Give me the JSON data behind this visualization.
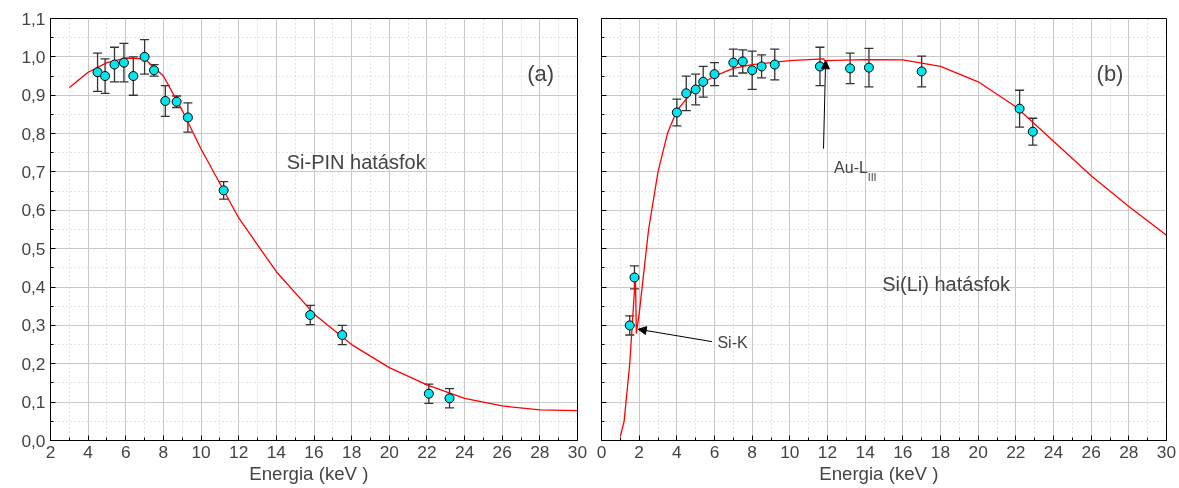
{
  "chart_data": [
    {
      "type": "scatter",
      "xlabel": "Energia   (keV )",
      "xlim": [
        2,
        30
      ],
      "ylim": [
        0,
        1.1
      ],
      "xticks": [
        2,
        4,
        6,
        8,
        10,
        12,
        14,
        16,
        18,
        20,
        22,
        24,
        26,
        28,
        30
      ],
      "yticks": [
        {
          "value": 0,
          "label": "0,0"
        },
        {
          "value": 0.1,
          "label": "0,1"
        },
        {
          "value": 0.2,
          "label": "0,2"
        },
        {
          "value": 0.3,
          "label": "0,3"
        },
        {
          "value": 0.4,
          "label": "0,4"
        },
        {
          "value": 0.5,
          "label": "0,5"
        },
        {
          "value": 0.6,
          "label": "0,6"
        },
        {
          "value": 0.7,
          "label": "0,7"
        },
        {
          "value": 0.8,
          "label": "0,8"
        },
        {
          "value": 0.9,
          "label": "0,9"
        },
        {
          "value": 1.0,
          "label": "1,0"
        },
        {
          "value": 1.1,
          "label": "1,1"
        }
      ],
      "grid": true,
      "marker": "circle",
      "series": [
        {
          "color": "#00e5ee",
          "x": [
            4.5,
            4.9,
            5.4,
            5.9,
            6.4,
            7.0,
            7.5,
            8.1,
            8.7,
            9.3,
            11.2,
            15.8,
            17.5,
            22.1,
            23.2
          ],
          "values": [
            0.96,
            0.95,
            0.98,
            0.985,
            0.95,
            1.0,
            0.965,
            0.885,
            0.883,
            0.842,
            0.652,
            0.327,
            0.275,
            0.122,
            0.11
          ],
          "errors": [
            0.05,
            0.045,
            0.045,
            0.05,
            0.05,
            0.045,
            0.015,
            0.04,
            0.015,
            0.038,
            0.023,
            0.025,
            0.025,
            0.025,
            0.025
          ]
        },
        {
          "type": "line",
          "marker": "none",
          "color": "#ff0000",
          "x": [
            3,
            4,
            5,
            6,
            7,
            8,
            9,
            10,
            11,
            12,
            14,
            16,
            18,
            20,
            22,
            24,
            26,
            28,
            30
          ],
          "values": [
            0.92,
            0.96,
            0.985,
            0.997,
            0.995,
            0.95,
            0.86,
            0.76,
            0.67,
            0.58,
            0.44,
            0.33,
            0.25,
            0.19,
            0.145,
            0.11,
            0.09,
            0.08,
            0.078
          ]
        }
      ],
      "annotations": [
        "(a)",
        "Si-PIN hatásfok"
      ]
    },
    {
      "type": "scatter",
      "xlabel": "Energia   (keV )",
      "xlim": [
        0,
        30
      ],
      "ylim": [
        0,
        1.1
      ],
      "xticks": [
        0,
        2,
        4,
        6,
        8,
        10,
        12,
        14,
        16,
        18,
        20,
        22,
        24,
        26,
        28,
        30
      ],
      "yticks": [
        {
          "value": 0,
          "label": null
        },
        {
          "value": 0.1,
          "label": null
        },
        {
          "value": 0.2,
          "label": null
        },
        {
          "value": 0.3,
          "label": null
        },
        {
          "value": 0.4,
          "label": null
        },
        {
          "value": 0.5,
          "label": null
        },
        {
          "value": 0.6,
          "label": null
        },
        {
          "value": 0.7,
          "label": null
        },
        {
          "value": 0.8,
          "label": null
        },
        {
          "value": 0.9,
          "label": null
        },
        {
          "value": 1.0,
          "label": null
        },
        {
          "value": 1.1,
          "label": null
        }
      ],
      "tick_labels": "x",
      "grid": true,
      "marker": "circle",
      "series": [
        {
          "color": "#00e5ee",
          "x": [
            1.5,
            1.75,
            4.0,
            4.5,
            5.0,
            5.4,
            6.0,
            7.0,
            7.5,
            8.0,
            8.5,
            9.2,
            11.6,
            13.2,
            14.2,
            17.0,
            22.2,
            22.9
          ],
          "values": [
            0.3,
            0.425,
            0.855,
            0.905,
            0.915,
            0.935,
            0.955,
            0.985,
            0.988,
            0.965,
            0.975,
            0.98,
            0.975,
            0.97,
            0.972,
            0.962,
            0.865,
            0.805
          ],
          "errors": [
            0.025,
            0.03,
            0.035,
            0.045,
            0.04,
            0.04,
            0.03,
            0.035,
            0.03,
            0.05,
            0.03,
            0.04,
            0.05,
            0.04,
            0.05,
            0.04,
            0.048,
            0.035
          ]
        },
        {
          "type": "line",
          "marker": "none",
          "color": "#ff0000",
          "x": [
            1.0,
            1.2,
            1.5,
            1.8,
            1.85,
            2.0,
            2.5,
            3.0,
            3.5,
            4.0,
            5.0,
            6.0,
            7.0,
            8.0,
            10.0,
            11.8,
            11.85,
            14.0,
            16.0,
            18.0,
            20.0,
            22.0,
            24.0,
            26.0,
            28.0,
            30.0
          ],
          "values": [
            0.01,
            0.05,
            0.2,
            0.43,
            0.28,
            0.33,
            0.55,
            0.7,
            0.8,
            0.86,
            0.92,
            0.95,
            0.97,
            0.98,
            0.99,
            0.995,
            0.99,
            0.993,
            0.992,
            0.975,
            0.935,
            0.87,
            0.78,
            0.69,
            0.61,
            0.535
          ]
        }
      ],
      "annotations": [
        "(b)",
        "Si(Li) hatásfok",
        {
          "text": "Si-K",
          "x": 1.95,
          "y": 0.29
        },
        {
          "text": "Au-L$_{III}$",
          "x": 11.9,
          "y": 0.99
        }
      ]
    }
  ]
}
